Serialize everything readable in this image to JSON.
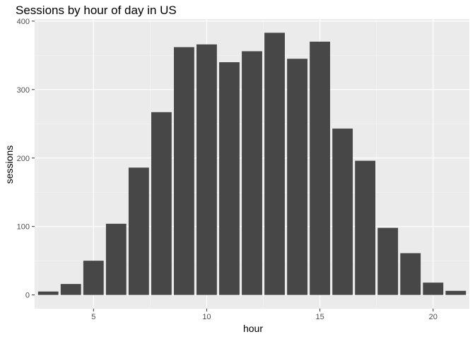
{
  "chart_data": {
    "type": "bar",
    "title": "Sessions by hour of day in US",
    "xlabel": "hour",
    "ylabel": "sessions",
    "x": [
      3,
      4,
      5,
      6,
      7,
      8,
      9,
      10,
      11,
      12,
      13,
      14,
      15,
      16,
      17,
      18,
      19,
      20,
      21
    ],
    "values": [
      5,
      16,
      50,
      104,
      186,
      267,
      362,
      366,
      340,
      356,
      383,
      345,
      370,
      243,
      196,
      98,
      61,
      18,
      6
    ],
    "xlim": [
      2.4,
      21.6
    ],
    "ylim": [
      -20,
      403
    ],
    "xticks": [
      5,
      10,
      15,
      20
    ],
    "yticks": [
      0,
      100,
      200,
      300,
      400
    ],
    "grid": true,
    "colors": {
      "bar": "#474747",
      "panel": "#ebebeb",
      "grid_major": "#ffffff",
      "grid_minor": "#f5f5f5"
    }
  }
}
